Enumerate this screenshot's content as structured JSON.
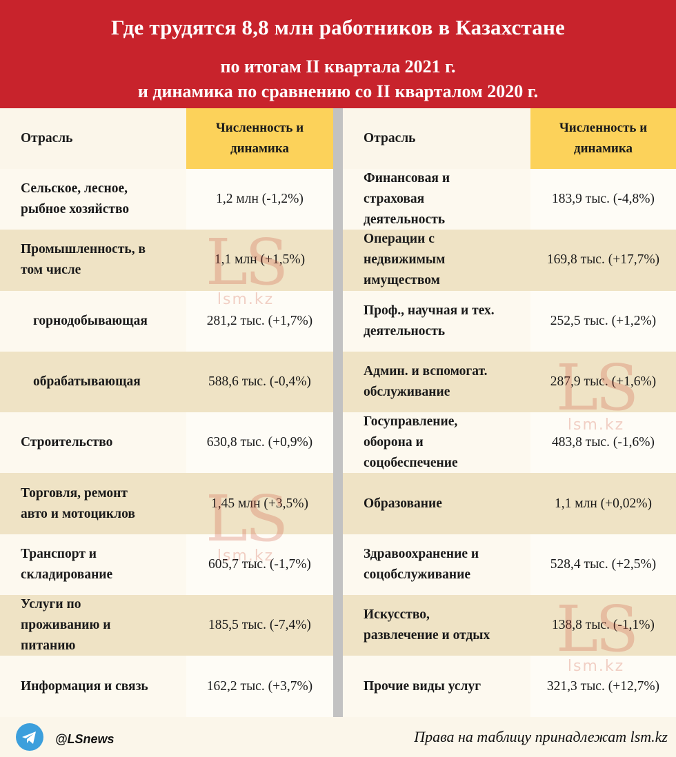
{
  "header": {
    "title": "Где трудятся 8,8 млн работников в Казахстане",
    "subtitle_line1": "по итогам II квартала 2021 г.",
    "subtitle_line2": "и динамика по сравнению со II кварталом 2020 г."
  },
  "columns": {
    "sector": "Отрасль",
    "value_line1": "Численность и",
    "value_line2": "динамика"
  },
  "left_rows": [
    {
      "sector": [
        "Сельское, лесное,",
        "рыбное хозяйство"
      ],
      "value": "1,2 млн (-1,2%)"
    },
    {
      "sector": [
        "Промышленность, в",
        "том числе"
      ],
      "value": "1,1 млн (+1,5%)"
    },
    {
      "sector": [
        "горнодобывающая"
      ],
      "value": "281,2 тыс. (+1,7%)"
    },
    {
      "sector": [
        "обрабатывающая"
      ],
      "value": "588,6 тыс. (-0,4%)"
    },
    {
      "sector": [
        "Строительство"
      ],
      "value": "630,8 тыс. (+0,9%)"
    },
    {
      "sector": [
        "Торговля, ремонт",
        "авто и мотоциклов"
      ],
      "value": "1,45 млн (+3,5%)"
    },
    {
      "sector": [
        "Транспорт и",
        "складирование"
      ],
      "value": "605,7 тыс. (-1,7%)"
    },
    {
      "sector": [
        "Услуги по",
        "проживанию и",
        "питанию"
      ],
      "value": "185,5 тыс. (-7,4%)"
    },
    {
      "sector": [
        "Информация и связь"
      ],
      "value": "162,2 тыс. (+3,7%)"
    }
  ],
  "right_rows": [
    {
      "sector": [
        "Финансовая и",
        "страховая",
        "деятельность"
      ],
      "value": "183,9 тыс. (-4,8%)"
    },
    {
      "sector": [
        "Операции с",
        "недвижимым",
        "имуществом"
      ],
      "value": "169,8 тыс. (+17,7%)"
    },
    {
      "sector": [
        "Проф., научная и тех.",
        "деятельность"
      ],
      "value": "252,5 тыс. (+1,2%)"
    },
    {
      "sector": [
        "Админ. и вспомогат.",
        "обслуживание"
      ],
      "value": "287,9 тыс. (+1,6%)"
    },
    {
      "sector": [
        "Госуправление,",
        "оборона и",
        "соцобеспечение"
      ],
      "value": "483,8 тыс. (-1,6%)"
    },
    {
      "sector": [
        "Образование"
      ],
      "value": "1,1 млн (+0,02%)"
    },
    {
      "sector": [
        "Здравоохранение и",
        "соцобслуживание"
      ],
      "value": "528,4 тыс. (+2,5%)"
    },
    {
      "sector": [
        "Искусство,",
        "развлечение и отдых"
      ],
      "value": "138,8 тыс. (-1,1%)"
    },
    {
      "sector": [
        "Прочие виды услуг"
      ],
      "value": "321,3 тыс. (+12,7%)"
    }
  ],
  "watermark": {
    "logo": "LS",
    "site": "lsm.kz"
  },
  "footer": {
    "telegram_icon": "telegram-icon",
    "handle": "@LSnews",
    "rights": "Права на таблицу принадлежат lsm.kz"
  },
  "colors": {
    "header_bg": "#c8232c",
    "column_header_bg": "#fcd25a",
    "row_alt_bg": "#efe3c5"
  }
}
